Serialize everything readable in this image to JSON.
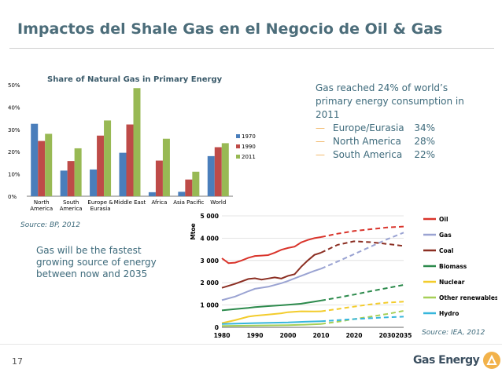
{
  "slide": {
    "title": "Impactos del Shale Gas en el Negocio de Oil & Gas",
    "slide_number": "17",
    "logo_text": "Gas Energy"
  },
  "gas_summary": {
    "lines": [
      "Gas reached 24% of world’s",
      "primary energy consumption in",
      "2011"
    ],
    "regions": [
      {
        "name": "Europe/Eurasia",
        "value": "34%"
      },
      {
        "name": "North America",
        "value": "28%"
      },
      {
        "name": "South America",
        "value": "22%"
      }
    ],
    "dash_color": "#f0b35f"
  },
  "fastest_note": [
    "Gas will be the fastest",
    "growing source of energy",
    "between now and 2035"
  ],
  "sources": {
    "bp": "Source: BP, 2012",
    "iea": "Source: IEA, 2012"
  },
  "chart_data": [
    {
      "type": "bar",
      "title": "Share of Natural Gas in Primary Energy",
      "categories": [
        [
          "North",
          "America"
        ],
        [
          "South",
          "America"
        ],
        [
          "Europe &",
          "Eurasia"
        ],
        [
          "Middle East"
        ],
        [
          "Africa"
        ],
        [
          "Asia Pacific"
        ],
        [
          "World"
        ]
      ],
      "series": [
        {
          "name": "1970",
          "color": "#4a7ebb",
          "values": [
            32.5,
            11.5,
            12,
            19.5,
            1.8,
            2,
            18
          ]
        },
        {
          "name": "1990",
          "color": "#be4b48",
          "values": [
            24.8,
            15.8,
            27.2,
            32.2,
            16,
            7.5,
            22
          ]
        },
        {
          "name": "2011",
          "color": "#98b954",
          "values": [
            28,
            21.5,
            34,
            48.5,
            25.8,
            11,
            23.8
          ]
        }
      ],
      "ylim": [
        0,
        50
      ],
      "yticks": [
        0,
        10,
        20,
        30,
        40,
        50
      ],
      "ytick_labels": [
        "0%",
        "10%",
        "20%",
        "30%",
        "40%",
        "50%"
      ],
      "legend_position": "right",
      "grid": false
    },
    {
      "type": "line",
      "ylabel": "Mtoe",
      "xlim": [
        1980,
        2035
      ],
      "xticks": [
        1980,
        1990,
        2000,
        2010,
        2020,
        2030,
        2035
      ],
      "ylim": [
        0,
        5000
      ],
      "yticks": [
        0,
        1000,
        2000,
        3000,
        4000,
        5000
      ],
      "ytick_labels": [
        "0",
        "1 000",
        "2 000",
        "3 000",
        "4 000",
        "5 000"
      ],
      "historical_end": 2010,
      "legend_position": "right",
      "grid": true,
      "series": [
        {
          "name": "Oil",
          "color": "#d9342b",
          "points": [
            [
              1980,
              3100
            ],
            [
              1982,
              2880
            ],
            [
              1984,
              2900
            ],
            [
              1986,
              3000
            ],
            [
              1988,
              3120
            ],
            [
              1990,
              3200
            ],
            [
              1992,
              3220
            ],
            [
              1994,
              3240
            ],
            [
              1996,
              3350
            ],
            [
              1998,
              3480
            ],
            [
              2000,
              3560
            ],
            [
              2002,
              3620
            ],
            [
              2004,
              3810
            ],
            [
              2006,
              3920
            ],
            [
              2008,
              4000
            ],
            [
              2010,
              4050
            ],
            [
              2015,
              4200
            ],
            [
              2020,
              4320
            ],
            [
              2025,
              4400
            ],
            [
              2030,
              4480
            ],
            [
              2035,
              4520
            ]
          ]
        },
        {
          "name": "Gas",
          "color": "#9aa3d2",
          "points": [
            [
              1980,
              1220
            ],
            [
              1984,
              1380
            ],
            [
              1988,
              1620
            ],
            [
              1990,
              1730
            ],
            [
              1994,
              1820
            ],
            [
              1998,
              1980
            ],
            [
              2000,
              2080
            ],
            [
              2004,
              2310
            ],
            [
              2008,
              2530
            ],
            [
              2010,
              2630
            ],
            [
              2015,
              2950
            ],
            [
              2020,
              3280
            ],
            [
              2025,
              3620
            ],
            [
              2030,
              3950
            ],
            [
              2035,
              4250
            ]
          ]
        },
        {
          "name": "Coal",
          "color": "#8b2e22",
          "points": [
            [
              1980,
              1770
            ],
            [
              1984,
              1950
            ],
            [
              1988,
              2170
            ],
            [
              1990,
              2200
            ],
            [
              1992,
              2140
            ],
            [
              1994,
              2190
            ],
            [
              1996,
              2240
            ],
            [
              1998,
              2190
            ],
            [
              2000,
              2310
            ],
            [
              2002,
              2380
            ],
            [
              2004,
              2720
            ],
            [
              2006,
              3000
            ],
            [
              2008,
              3250
            ],
            [
              2010,
              3350
            ],
            [
              2015,
              3700
            ],
            [
              2020,
              3860
            ],
            [
              2025,
              3820
            ],
            [
              2030,
              3740
            ],
            [
              2035,
              3650
            ]
          ]
        },
        {
          "name": "Biomass",
          "color": "#2c8a4c",
          "points": [
            [
              1980,
              760
            ],
            [
              1984,
              820
            ],
            [
              1988,
              870
            ],
            [
              1990,
              905
            ],
            [
              1994,
              950
            ],
            [
              1998,
              990
            ],
            [
              2000,
              1010
            ],
            [
              2004,
              1060
            ],
            [
              2008,
              1150
            ],
            [
              2010,
              1200
            ],
            [
              2015,
              1330
            ],
            [
              2020,
              1470
            ],
            [
              2025,
              1620
            ],
            [
              2030,
              1760
            ],
            [
              2035,
              1900
            ]
          ]
        },
        {
          "name": "Nuclear",
          "color": "#f3cc2c",
          "points": [
            [
              1980,
              190
            ],
            [
              1984,
              320
            ],
            [
              1988,
              480
            ],
            [
              1990,
              520
            ],
            [
              1994,
              570
            ],
            [
              1998,
              630
            ],
            [
              2000,
              680
            ],
            [
              2004,
              720
            ],
            [
              2008,
              710
            ],
            [
              2010,
              720
            ],
            [
              2015,
              820
            ],
            [
              2020,
              930
            ],
            [
              2025,
              1030
            ],
            [
              2030,
              1110
            ],
            [
              2035,
              1150
            ]
          ]
        },
        {
          "name": "Other renewables",
          "color": "#a6cf57",
          "points": [
            [
              1980,
              60
            ],
            [
              1990,
              80
            ],
            [
              2000,
              100
            ],
            [
              2005,
              120
            ],
            [
              2010,
              150
            ],
            [
              2015,
              250
            ],
            [
              2020,
              370
            ],
            [
              2025,
              480
            ],
            [
              2030,
              600
            ],
            [
              2035,
              740
            ]
          ]
        },
        {
          "name": "Hydro",
          "color": "#37b6dc",
          "points": [
            [
              1980,
              150
            ],
            [
              1990,
              190
            ],
            [
              2000,
              220
            ],
            [
              2005,
              250
            ],
            [
              2010,
              270
            ],
            [
              2015,
              320
            ],
            [
              2020,
              370
            ],
            [
              2025,
              410
            ],
            [
              2030,
              450
            ],
            [
              2035,
              480
            ]
          ]
        }
      ]
    }
  ]
}
